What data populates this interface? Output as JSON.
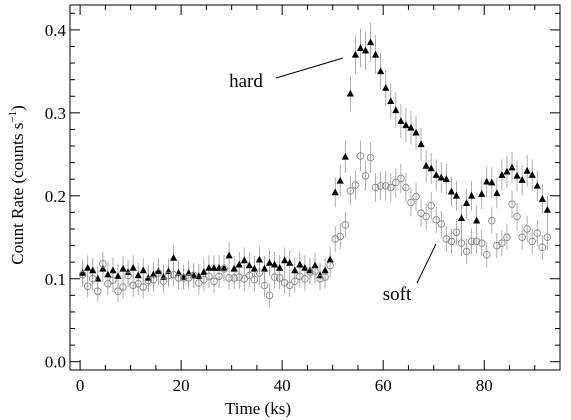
{
  "chart_data": {
    "type": "scatter",
    "xlabel": "Time (ks)",
    "ylabel": "Count Rate (counts s",
    "ylabel_sup": "−1",
    "ylabel_close": ")",
    "xlim": [
      -2,
      95
    ],
    "ylim": [
      -0.01,
      0.43
    ],
    "x_ticks": [
      0,
      20,
      40,
      60,
      80
    ],
    "x_tick_labels": [
      "0",
      "20",
      "40",
      "60",
      "80"
    ],
    "y_ticks": [
      0.0,
      0.1,
      0.2,
      0.3,
      0.4
    ],
    "y_tick_labels": [
      "0.0",
      "0.1",
      "0.2",
      "0.3",
      "0.4"
    ],
    "grid": false,
    "annotations": [
      {
        "text": "hard",
        "series": "hard",
        "x_data": 55,
        "y_data": 0.37
      },
      {
        "text": "soft",
        "series": "soft",
        "x_data": 72.5,
        "y_data": 0.127
      }
    ],
    "series": [
      {
        "name": "hard",
        "marker": "filled-triangle",
        "color": "#000000",
        "errorbar_color": "#999999",
        "x": [
          0.5,
          1.5,
          2.5,
          3.5,
          4.5,
          5.5,
          6.5,
          7.5,
          8.5,
          9.5,
          10.5,
          11.5,
          12.5,
          13.5,
          14.5,
          15.5,
          16.5,
          17.5,
          18.5,
          19.5,
          20.5,
          21.5,
          22.5,
          23.5,
          24.5,
          25.5,
          26.5,
          27.5,
          28.5,
          29.5,
          30.5,
          31.5,
          32.5,
          33.5,
          34.5,
          35.5,
          36.5,
          37.5,
          38.5,
          39.5,
          40.5,
          41.5,
          42.5,
          43.5,
          44.5,
          45.5,
          46.5,
          47.5,
          48.5,
          49.5,
          50.5,
          51.5,
          52.5,
          53.5,
          54.5,
          55.5,
          56.5,
          57.5,
          58.5,
          59.5,
          60.5,
          61.5,
          62.5,
          63.5,
          64.5,
          65.5,
          66.5,
          67.5,
          68.5,
          69.5,
          70.5,
          71.5,
          72.5,
          73.5,
          74.5,
          75.5,
          76.5,
          77.5,
          78.5,
          79.5,
          80.5,
          81.5,
          82.5,
          83.5,
          84.5,
          85.5,
          86.5,
          87.5,
          88.5,
          89.5,
          90.5,
          91.5,
          92.5
        ],
        "y": [
          0.107,
          0.113,
          0.11,
          0.1,
          0.112,
          0.105,
          0.11,
          0.103,
          0.112,
          0.108,
          0.113,
          0.104,
          0.11,
          0.101,
          0.105,
          0.109,
          0.102,
          0.109,
          0.125,
          0.107,
          0.102,
          0.107,
          0.104,
          0.103,
          0.108,
          0.113,
          0.113,
          0.113,
          0.113,
          0.128,
          0.112,
          0.117,
          0.122,
          0.116,
          0.112,
          0.123,
          0.112,
          0.119,
          0.117,
          0.113,
          0.122,
          0.119,
          0.11,
          0.117,
          0.113,
          0.11,
          0.116,
          0.104,
          0.11,
          0.123,
          0.204,
          0.218,
          0.247,
          0.323,
          0.37,
          0.378,
          0.375,
          0.385,
          0.37,
          0.35,
          0.33,
          0.314,
          0.303,
          0.29,
          0.285,
          0.282,
          0.276,
          0.262,
          0.236,
          0.233,
          0.225,
          0.222,
          0.22,
          0.205,
          0.2,
          0.173,
          0.191,
          0.2,
          0.17,
          0.202,
          0.217,
          0.216,
          0.203,
          0.225,
          0.229,
          0.234,
          0.224,
          0.219,
          0.23,
          0.225,
          0.212,
          0.196,
          0.183
        ]
      },
      {
        "name": "soft",
        "marker": "open-circle",
        "color": "#888888",
        "errorbar_color": "#999999",
        "x": [
          0.5,
          1.5,
          2.5,
          3.5,
          4.5,
          5.5,
          6.5,
          7.5,
          8.5,
          9.5,
          10.5,
          11.5,
          12.5,
          13.5,
          14.5,
          15.5,
          16.5,
          17.5,
          18.5,
          19.5,
          20.5,
          21.5,
          22.5,
          23.5,
          24.5,
          25.5,
          26.5,
          27.5,
          28.5,
          29.5,
          30.5,
          31.5,
          32.5,
          33.5,
          34.5,
          35.5,
          36.5,
          37.5,
          38.5,
          39.5,
          40.5,
          41.5,
          42.5,
          43.5,
          44.5,
          45.5,
          46.5,
          47.5,
          48.5,
          49.5,
          50.5,
          51.5,
          52.5,
          53.5,
          54.5,
          55.5,
          56.5,
          57.5,
          58.5,
          59.5,
          60.5,
          61.5,
          62.5,
          63.5,
          64.5,
          65.5,
          66.5,
          67.5,
          68.5,
          69.5,
          70.5,
          71.5,
          72.5,
          73.5,
          74.5,
          75.5,
          76.5,
          77.5,
          78.5,
          79.5,
          80.5,
          81.5,
          82.5,
          83.5,
          84.5,
          85.5,
          86.5,
          87.5,
          88.5,
          89.5,
          90.5,
          91.5,
          92.5
        ],
        "y": [
          0.105,
          0.091,
          0.1,
          0.085,
          0.118,
          0.094,
          0.098,
          0.085,
          0.09,
          0.104,
          0.092,
          0.094,
          0.09,
          0.098,
          0.099,
          0.107,
          0.097,
          0.104,
          0.105,
          0.101,
          0.101,
          0.101,
          0.104,
          0.095,
          0.099,
          0.103,
          0.097,
          0.103,
          0.112,
          0.101,
          0.101,
          0.102,
          0.1,
          0.104,
          0.099,
          0.107,
          0.092,
          0.08,
          0.102,
          0.101,
          0.095,
          0.092,
          0.097,
          0.103,
          0.1,
          0.108,
          0.109,
          0.1,
          0.102,
          0.116,
          0.148,
          0.151,
          0.165,
          0.206,
          0.213,
          0.248,
          0.224,
          0.246,
          0.21,
          0.212,
          0.212,
          0.21,
          0.216,
          0.221,
          0.21,
          0.192,
          0.199,
          0.179,
          0.175,
          0.188,
          0.171,
          0.166,
          0.148,
          0.145,
          0.156,
          0.143,
          0.133,
          0.145,
          0.145,
          0.143,
          0.129,
          0.17,
          0.14,
          0.143,
          0.15,
          0.19,
          0.175,
          0.15,
          0.16,
          0.145,
          0.155,
          0.138,
          0.15
        ]
      }
    ]
  }
}
